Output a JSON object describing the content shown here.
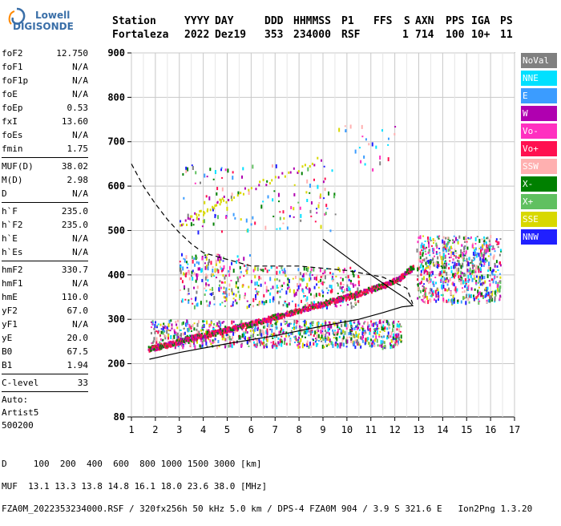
{
  "logo": {
    "line1": "Lowell",
    "line2": "DIGISONDE"
  },
  "header": {
    "labels": [
      "Station",
      "YYYY",
      "DAY",
      "DDD",
      "HHMMSS",
      "P1",
      "FFS",
      "S",
      "AXN",
      "PPS",
      "IGA",
      "PS"
    ],
    "values": [
      "Fortaleza",
      "2022",
      "Dez19",
      "353",
      "234000",
      "RSF",
      "1",
      "714",
      "100",
      "10+",
      "11"
    ]
  },
  "params": [
    {
      "k": "foF2",
      "v": "12.750"
    },
    {
      "k": "foF1",
      "v": "N/A"
    },
    {
      "k": "foF1p",
      "v": "N/A"
    },
    {
      "k": "foE",
      "v": "N/A"
    },
    {
      "k": "foEp",
      "v": "0.53"
    },
    {
      "k": "fxI",
      "v": "13.60"
    },
    {
      "k": "foEs",
      "v": "N/A"
    },
    {
      "k": "fmin",
      "v": "1.75"
    },
    {
      "sep": true
    },
    {
      "k": "MUF(D)",
      "v": "38.02"
    },
    {
      "k": "M(D)",
      "v": "2.98"
    },
    {
      "k": "D",
      "v": "N/A"
    },
    {
      "sep": true
    },
    {
      "k": "h`F",
      "v": "235.0"
    },
    {
      "k": "h`F2",
      "v": "235.0"
    },
    {
      "k": "h`E",
      "v": "N/A"
    },
    {
      "k": "h`Es",
      "v": "N/A"
    },
    {
      "sep": true
    },
    {
      "k": "hmF2",
      "v": "330.7"
    },
    {
      "k": "hmF1",
      "v": "N/A"
    },
    {
      "k": "hmE",
      "v": "110.0"
    },
    {
      "k": "yF2",
      "v": "67.0"
    },
    {
      "k": "yF1",
      "v": "N/A"
    },
    {
      "k": "yE",
      "v": "20.0"
    },
    {
      "k": "B0",
      "v": "67.5"
    },
    {
      "k": "B1",
      "v": "1.94"
    },
    {
      "sep": true
    },
    {
      "k": "C-level",
      "v": "33"
    },
    {
      "sep": true
    }
  ],
  "autoscaling": {
    "line1": "Auto:",
    "line2": "Artist5",
    "line3": "500200"
  },
  "legend": [
    {
      "label": "NoVal",
      "color": "#808080"
    },
    {
      "label": "NNE",
      "color": "#00e0ff"
    },
    {
      "label": "E",
      "color": "#3b9cff"
    },
    {
      "label": "W",
      "color": "#b000b0"
    },
    {
      "label": "Vo-",
      "color": "#ff30c0"
    },
    {
      "label": "Vo+",
      "color": "#ff1050"
    },
    {
      "label": "SSW",
      "color": "#ffb0b0"
    },
    {
      "label": "X-",
      "color": "#008000"
    },
    {
      "label": "X+",
      "color": "#60c060"
    },
    {
      "label": "SSE",
      "color": "#d8d800"
    },
    {
      "label": "NNW",
      "color": "#2020ff"
    }
  ],
  "footer": {
    "line1": "D     100  200  400  600  800 1000 1500 3000 [km]",
    "line2": "MUF  13.1 13.3 13.8 14.8 16.1 18.0 23.6 38.0 [MHz]",
    "line3": "FZA0M_2022353234000.RSF / 320fx256h 50 kHz 5.0 km / DPS-4 FZA0M 904 / 3.9 S 321.6 E   Ion2Png 1.3.20"
  },
  "chart_data": {
    "type": "scatter",
    "xlim": [
      1,
      17
    ],
    "ylim": [
      80,
      900
    ],
    "x_ticks": [
      1,
      2,
      3,
      4,
      5,
      6,
      7,
      8,
      9,
      10,
      11,
      12,
      13,
      14,
      15,
      16,
      17
    ],
    "y_ticks": [
      80,
      200,
      300,
      400,
      500,
      600,
      700,
      800,
      900
    ],
    "grid": true,
    "ordinary_trace": [
      [
        1.7,
        235
      ],
      [
        2.5,
        245
      ],
      [
        3.5,
        260
      ],
      [
        4.5,
        272
      ],
      [
        5.5,
        285
      ],
      [
        6.5,
        300
      ],
      [
        7.5,
        315
      ],
      [
        8.5,
        330
      ],
      [
        9.5,
        345
      ],
      [
        10.5,
        360
      ],
      [
        11.5,
        378
      ],
      [
        12.2,
        395
      ],
      [
        12.75,
        420
      ]
    ],
    "upper_trace": [
      [
        3.0,
        515
      ],
      [
        3.5,
        530
      ],
      [
        4.0,
        545
      ],
      [
        4.5,
        560
      ],
      [
        5.0,
        575
      ],
      [
        6.0,
        600
      ],
      [
        7.0,
        620
      ],
      [
        8.0,
        640
      ],
      [
        9.0,
        665
      ]
    ],
    "profile_curve": [
      [
        1.75,
        210
      ],
      [
        3,
        225
      ],
      [
        5,
        245
      ],
      [
        7,
        263
      ],
      [
        9,
        285
      ],
      [
        10.5,
        300
      ],
      [
        11.5,
        315
      ],
      [
        12.3,
        328
      ],
      [
        12.75,
        330.7
      ],
      [
        12.5,
        345
      ],
      [
        11.8,
        370
      ],
      [
        11,
        400
      ],
      [
        10,
        440
      ],
      [
        9,
        480
      ]
    ],
    "mufd_curve": [
      [
        1,
        650
      ],
      [
        1.5,
        600
      ],
      [
        2,
        560
      ],
      [
        2.5,
        525
      ],
      [
        3,
        495
      ],
      [
        3.5,
        470
      ],
      [
        4,
        450
      ],
      [
        5,
        435
      ],
      [
        6,
        420
      ],
      [
        8,
        420
      ],
      [
        10,
        410
      ],
      [
        11.5,
        395
      ],
      [
        12.5,
        370
      ],
      [
        12.75,
        335
      ]
    ]
  }
}
